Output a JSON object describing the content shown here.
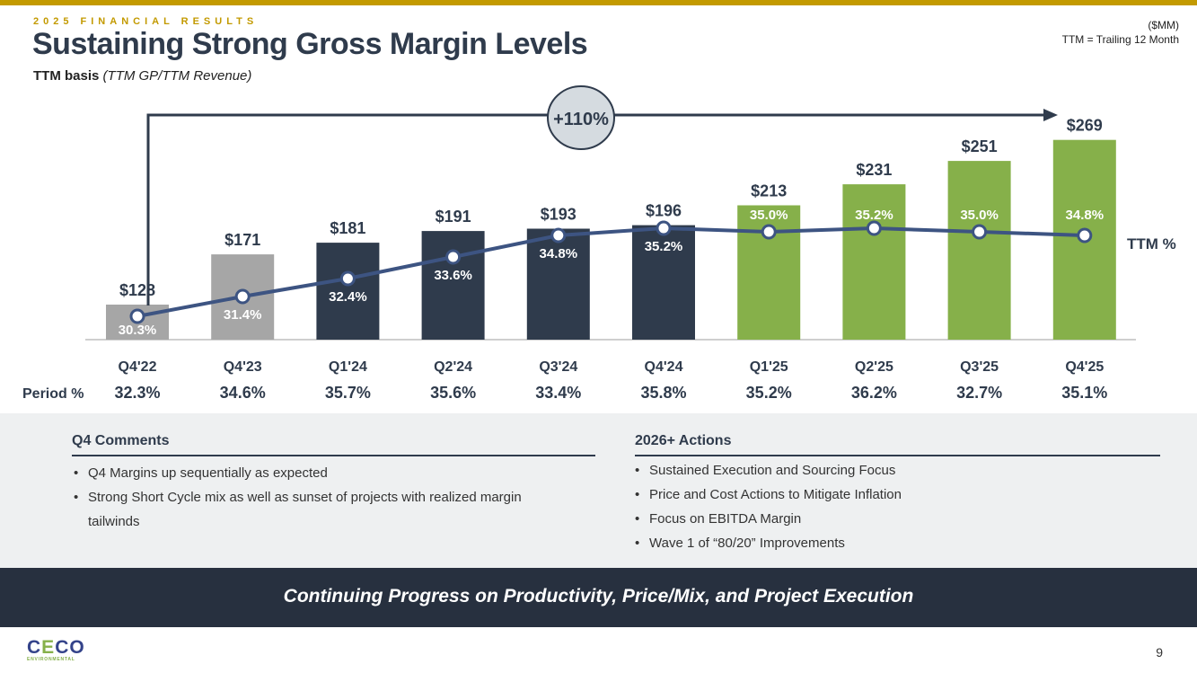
{
  "header": {
    "kicker": "2025 FINANCIAL RESULTS",
    "title": "Sustaining Strong Gross Margin Levels",
    "subtitle_bold": "TTM basis",
    "subtitle_italic": "(TTM GP/TTM Revenue)",
    "unit": "($MM)",
    "note": "TTM = Trailing 12 Month"
  },
  "chart_data": {
    "type": "bar",
    "categories": [
      "Q4'22",
      "Q4'23",
      "Q1'24",
      "Q2'24",
      "Q3'24",
      "Q4'24",
      "Q1'25",
      "Q2'25",
      "Q3'25",
      "Q4'25"
    ],
    "series": [
      {
        "name": "",
        "type": "bar",
        "values": [
          128,
          171,
          181,
          191,
          193,
          196,
          213,
          231,
          251,
          269
        ],
        "labels": [
          "$128",
          "$171",
          "$181",
          "$191",
          "$193",
          "$196",
          "$213",
          "$231",
          "$251",
          "$269"
        ],
        "colors": [
          "#a6a6a6",
          "#a6a6a6",
          "#2f3b4c",
          "#2f3b4c",
          "#2f3b4c",
          "#2f3b4c",
          "#86b04a",
          "#86b04a",
          "#86b04a",
          "#86b04a"
        ]
      },
      {
        "name": "TTM %",
        "type": "line",
        "values": [
          30.3,
          31.4,
          32.4,
          33.6,
          34.8,
          35.2,
          35.0,
          35.2,
          35.0,
          34.8
        ],
        "labels": [
          "30.3%",
          "31.4%",
          "32.4%",
          "33.6%",
          "34.8%",
          "35.2%",
          "35.0%",
          "35.2%",
          "35.0%",
          "34.8%"
        ],
        "color": "#3d5482"
      }
    ],
    "period_label": "Period %",
    "period_values": [
      "32.3%",
      "34.6%",
      "35.7%",
      "35.6%",
      "33.4%",
      "35.8%",
      "35.2%",
      "36.2%",
      "32.7%",
      "35.1%"
    ],
    "annotation": "+110%"
  },
  "comments": {
    "title": "Q4 Comments",
    "items": [
      "Q4 Margins up sequentially as expected",
      "Strong Short Cycle mix as well as sunset of projects with realized margin tailwinds"
    ]
  },
  "actions": {
    "title": "2026+ Actions",
    "items": [
      "Sustained Execution and Sourcing Focus",
      "Price and Cost Actions to Mitigate Inflation",
      "Focus on EBITDA Margin",
      "Wave 1 of “80/20” Improvements"
    ]
  },
  "banner": "Continuing Progress on Productivity, Price/Mix, and Project Execution",
  "footer": {
    "logo": "CECO ENVIRONMENTAL",
    "page": "9"
  }
}
